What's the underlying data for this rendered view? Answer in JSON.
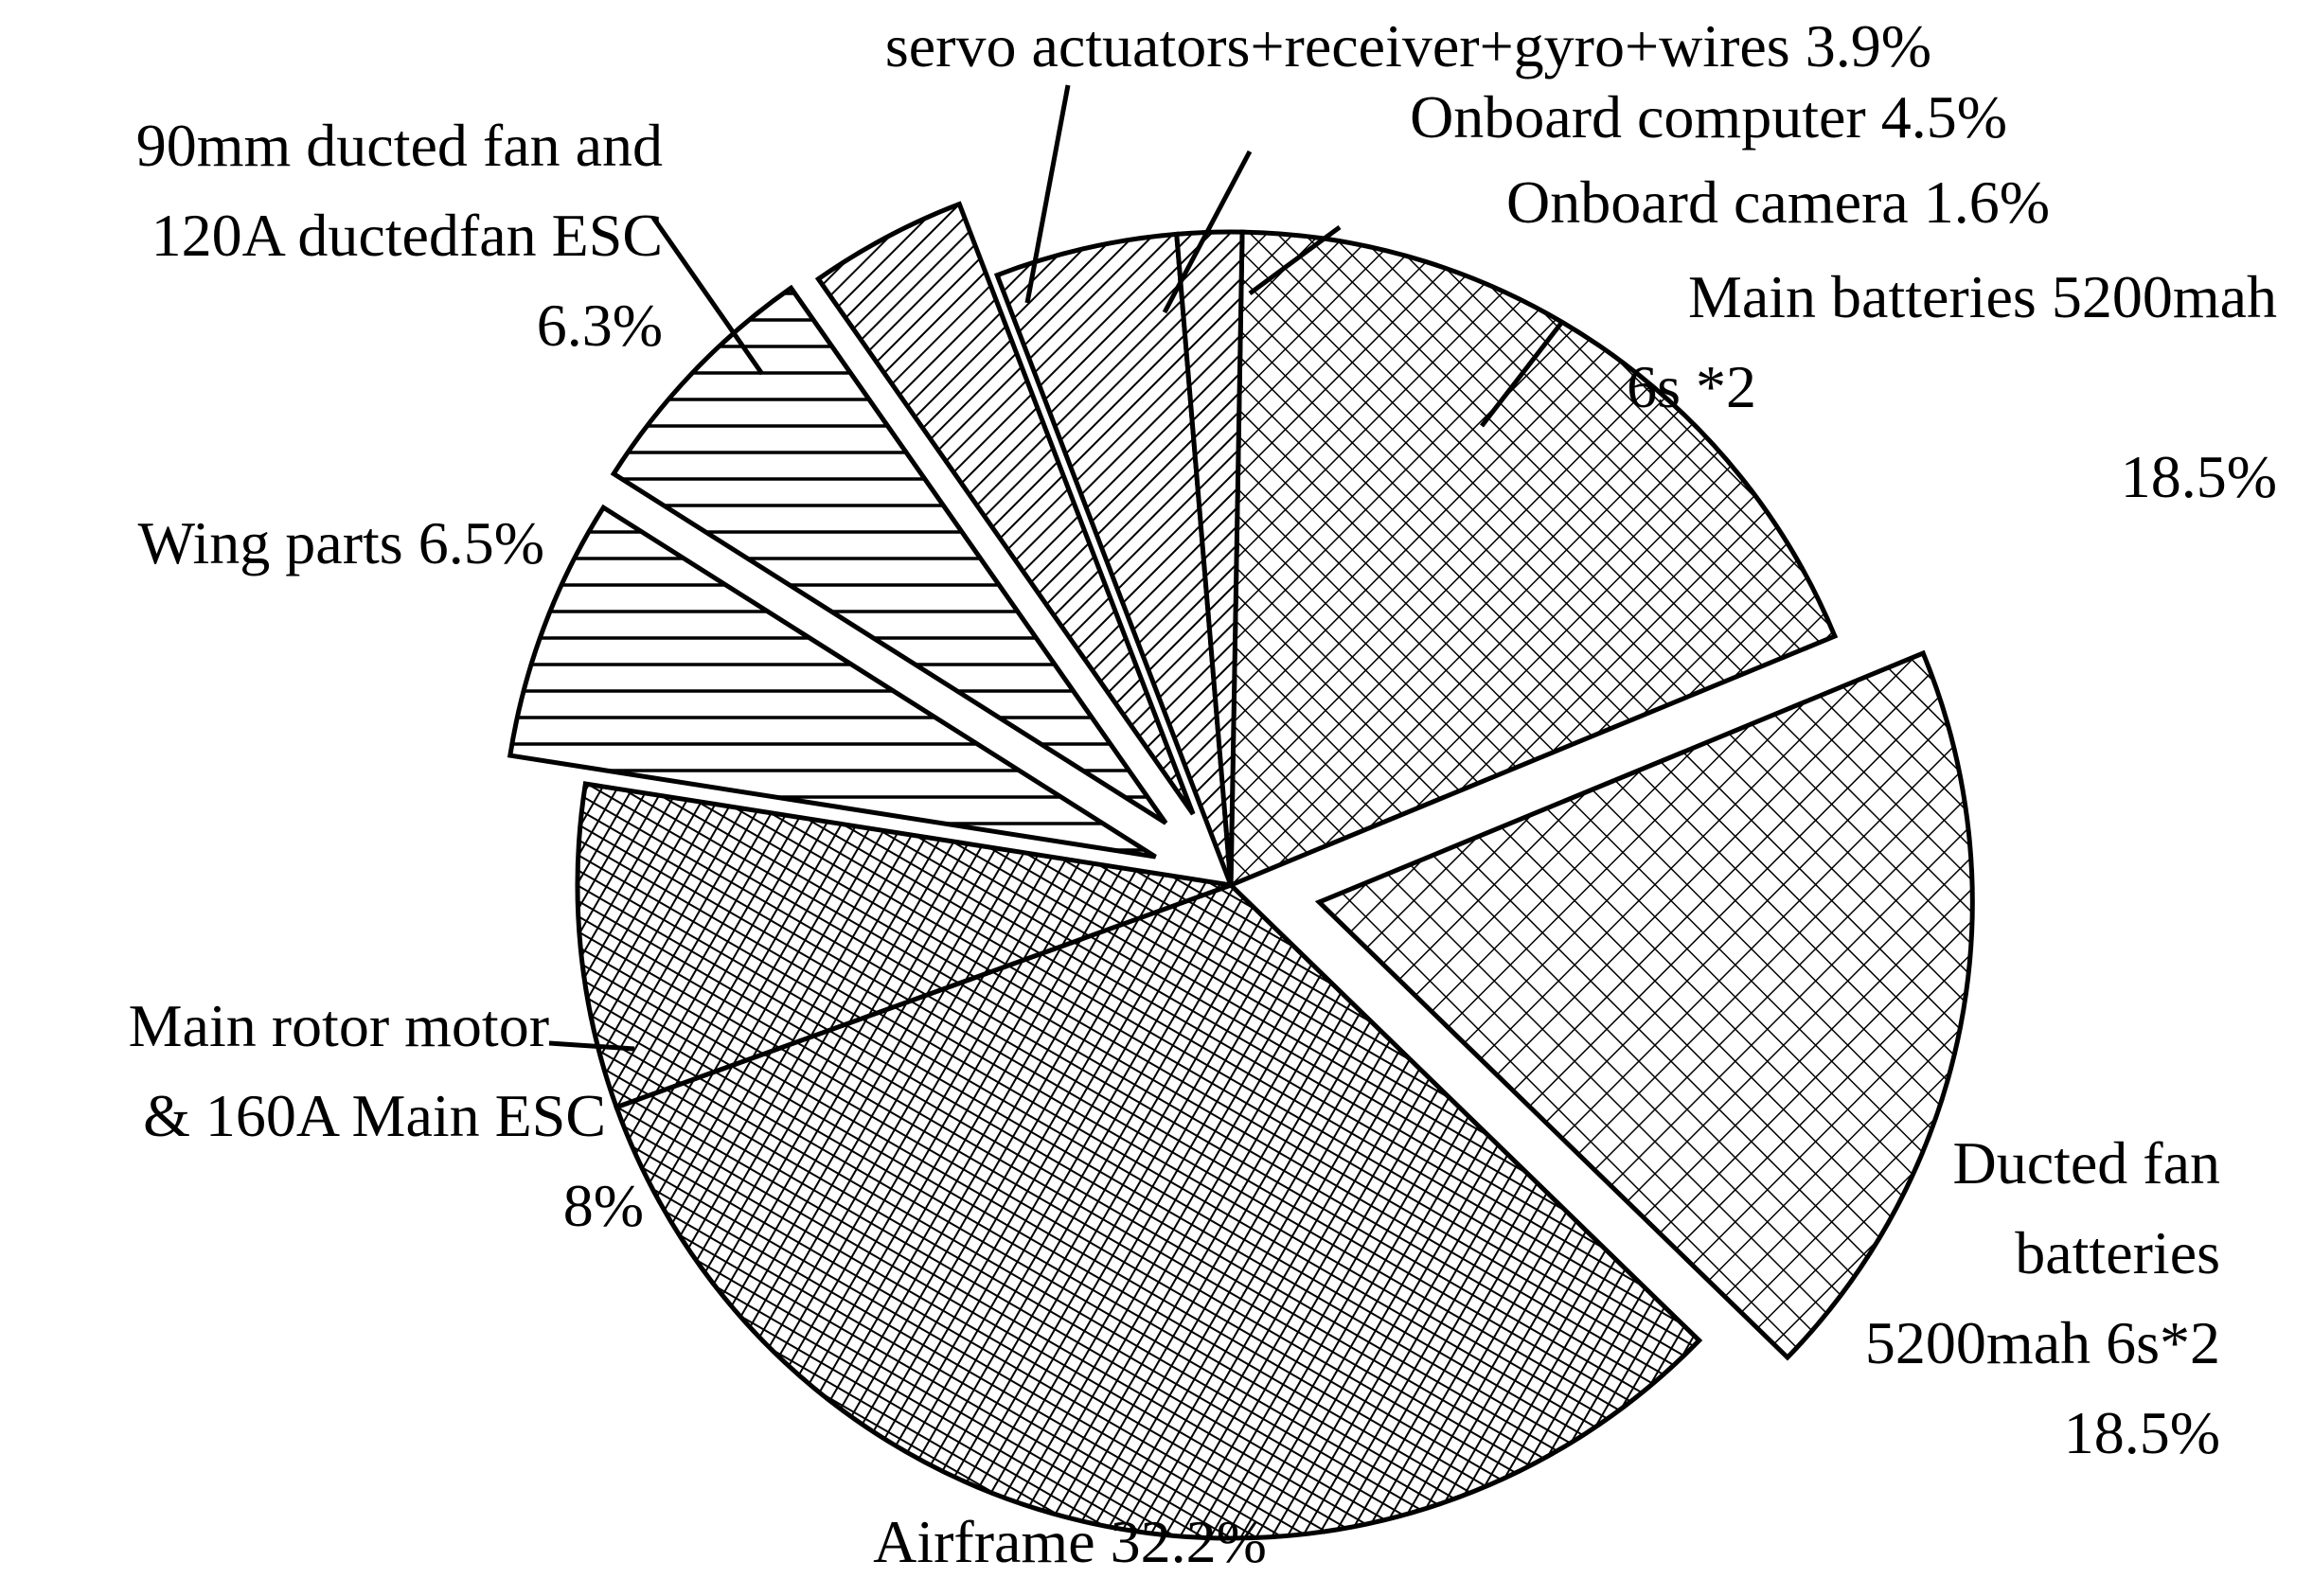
{
  "chart_data": {
    "type": "pie",
    "title": "",
    "slices": [
      {
        "name": "Main batteries 5200mah 6s *2",
        "value": 18.5,
        "pattern": "crosshatch-fine",
        "label_lines": [
          "Main batteries 5200mah",
          "6s *2",
          "18.5%"
        ]
      },
      {
        "name": "Ducted fan batteries 5200mah 6s*2",
        "value": 18.5,
        "pattern": "crosshatch-coarse",
        "label_lines": [
          "Ducted fan",
          "batteries",
          "5200mah 6s*2",
          "18.5%"
        ]
      },
      {
        "name": "Airframe",
        "value": 32.2,
        "pattern": "diagonal-crosshatch",
        "label_lines": [
          "Airframe  32.2%"
        ]
      },
      {
        "name": "Main rotor motor & 160A Main ESC",
        "value": 8,
        "pattern": "diagonal-crosshatch",
        "label_lines": [
          "Main rotor motor",
          "& 160A Main ESC",
          "8%"
        ]
      },
      {
        "name": "Wing parts",
        "value": 6.5,
        "pattern": "horizontal-lines",
        "label_lines": [
          "Wing parts  6.5%"
        ]
      },
      {
        "name": "90mm ducted fan and 120A ductedfan ESC",
        "value": 6.3,
        "pattern": "horizontal-lines",
        "label_lines": [
          "90mm ducted fan and",
          "120A ductedfan ESC",
          "6.3%"
        ]
      },
      {
        "name": "servo actuators+receiver+gyro+wires",
        "value": 3.9,
        "pattern": "diagonal-lines",
        "label_lines": [
          "servo actuators+receiver+gyro+wires  3.9%"
        ]
      },
      {
        "name": "Onboard computer",
        "value": 4.5,
        "pattern": "diagonal-lines",
        "label_lines": [
          "Onboard computer  4.5%"
        ]
      },
      {
        "name": "Onboard camera",
        "value": 1.6,
        "pattern": "diagonal-lines",
        "label_lines": [
          "Onboard camera  1.6%"
        ]
      }
    ],
    "colors": {
      "stroke": "#000000",
      "fill": "#ffffff"
    }
  }
}
